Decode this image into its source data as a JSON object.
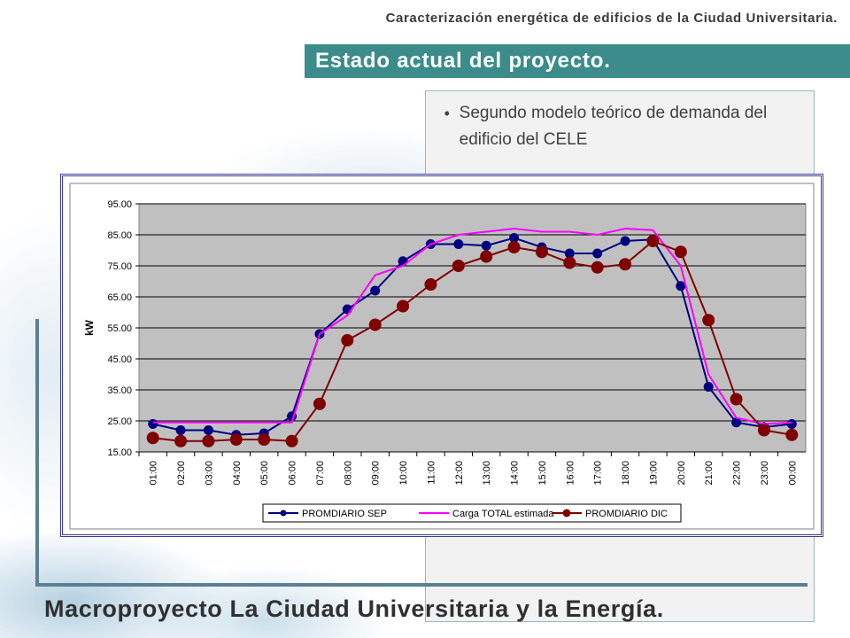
{
  "header": {
    "top_title": "Caracterización energética de edificios de la Ciudad Universitaria.",
    "section_title": "Estado actual del proyecto."
  },
  "content": {
    "bullet": "Segundo modelo teórico de demanda del edificio del CELE"
  },
  "footer": {
    "title": "Macroproyecto La Ciudad Universitaria y la Energía."
  },
  "colors": {
    "section_bar": "#3c8c8c",
    "series_sep": "#000080",
    "series_total": "#ff00ff",
    "series_dic": "#800000",
    "plot_bg": "#c0c0c0"
  },
  "chart_data": {
    "type": "line",
    "ylabel": "kW",
    "xlabel": "",
    "ylim": [
      15,
      95
    ],
    "y_ticks": [
      "95.00",
      "85.00",
      "75.00",
      "65.00",
      "55.00",
      "45.00",
      "35.00",
      "25.00",
      "15.00"
    ],
    "categories": [
      "01:00",
      "02:00",
      "03:00",
      "04:00",
      "05:00",
      "06:00",
      "07:00",
      "08:00",
      "09:00",
      "10:00",
      "11:00",
      "12:00",
      "13:00",
      "14:00",
      "15:00",
      "16:00",
      "17:00",
      "18:00",
      "19:00",
      "20:00",
      "21:00",
      "22:00",
      "23:00",
      "00:00"
    ],
    "grid": true,
    "legend_position": "bottom",
    "series": [
      {
        "name": "PROMDIARIO SEP",
        "color": "#000080",
        "marker": "small",
        "values": [
          24,
          22,
          22,
          20.5,
          21,
          26.5,
          53,
          61,
          67,
          76.5,
          82,
          82,
          81.5,
          84,
          81,
          79,
          79,
          83,
          83.5,
          68.5,
          36,
          24.5,
          23,
          24
        ]
      },
      {
        "name": "Carga TOTAL estimada",
        "color": "#ff00ff",
        "marker": "none",
        "values": [
          24.5,
          24.5,
          24.5,
          24.5,
          24.5,
          24.5,
          53,
          59,
          72,
          75,
          82,
          85,
          86,
          87,
          86,
          86,
          85,
          87,
          86.5,
          75,
          40,
          26,
          24,
          24.5
        ]
      },
      {
        "name": "PROMDIARIO DIC",
        "color": "#800000",
        "marker": "large",
        "values": [
          19.5,
          18.5,
          18.5,
          19,
          19,
          18.5,
          30.5,
          51,
          56,
          62,
          69,
          75,
          78,
          81,
          79.5,
          76,
          74.5,
          75.5,
          83,
          79.5,
          57.5,
          32,
          22,
          20.5
        ]
      }
    ]
  }
}
